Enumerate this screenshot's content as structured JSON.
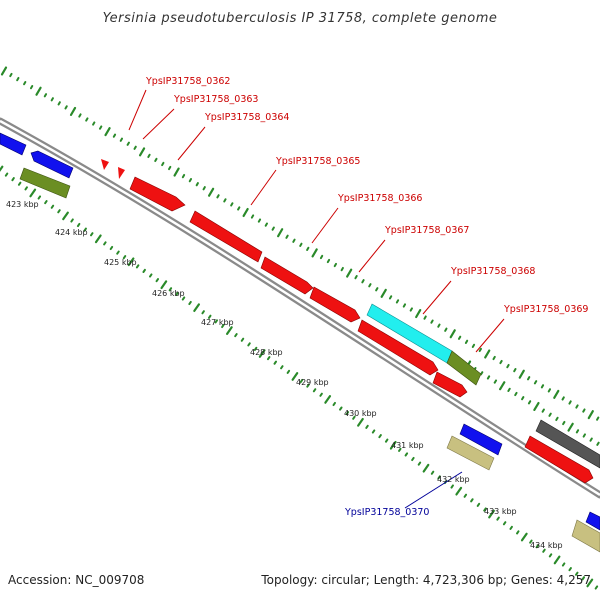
{
  "title": "Yersinia pseudotuberculosis IP 31758, complete genome",
  "footer": {
    "accession": "Accession: NC_009708",
    "summary": "Topology: circular; Length: 4,723,306 bp; Genes: 4,257"
  },
  "colors": {
    "forward_gene": "#ee1111",
    "reverse_gene": "#1111ee",
    "olive_gene": "#6b8e23",
    "khaki_gene": "#c8c080",
    "cyan_gene": "#22eeee",
    "gray_gene": "#555555",
    "tick_dots": "#2a8a2a",
    "backbone": "#888888",
    "label_forward": "#cc0000",
    "label_reverse": "#000099"
  },
  "scale": {
    "ticks": [
      "423 kbp",
      "424 kbp",
      "425 kbp",
      "426 kbp",
      "427 kbp",
      "428 kbp",
      "429 kbp",
      "430 kbp",
      "431 kbp",
      "432 kbp",
      "433 kbp",
      "434 kbp"
    ]
  },
  "callouts": {
    "forward": [
      "YpsIP31758_0362",
      "YpsIP31758_0363",
      "YpsIP31758_0364",
      "YpsIP31758_0365",
      "YpsIP31758_0366",
      "YpsIP31758_0367",
      "YpsIP31758_0368",
      "YpsIP31758_0369"
    ],
    "reverse": [
      "YpsIP31758_0370"
    ]
  }
}
